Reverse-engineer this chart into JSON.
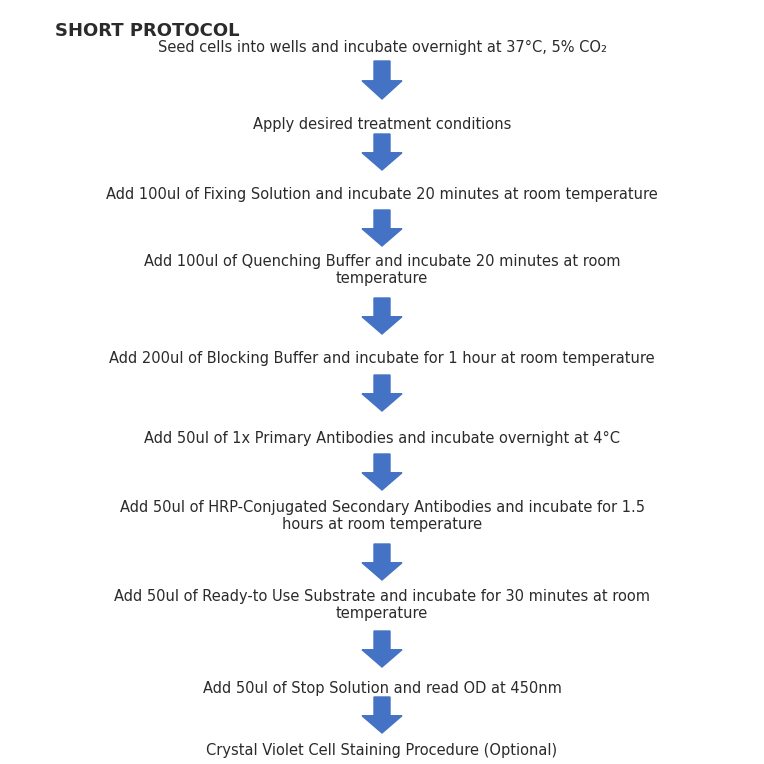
{
  "title": "SHORT PROTOCOL",
  "title_fontsize": 13,
  "title_fontweight": "bold",
  "background_color": "#ffffff",
  "arrow_color": "#4472C4",
  "text_color": "#2b2b2b",
  "text_fontsize": 10.5,
  "steps": [
    "Seed cells into wells and incubate overnight at 37°C, 5% CO₂",
    "Apply des​ired treatment conditions",
    "Add 100ul of Fixing Solution and incubate 20 minutes at room temperature",
    "Add 100ul of Quenching Buffer and incubate 20 minutes at room\ntemperature",
    "Add 200ul of Blocking Buffer and incubate for 1 hour at room temperature",
    "Add 50ul of 1x Primary Antibodies and incubate overnight at 4°C",
    "Add 50ul of HRP-Conjugated Secondary Antibodies and incubate for 1.5\nhours at room temperature",
    "Add 50ul of Ready-to Use Substrate and incubate for 30 minutes at room\ntemperature",
    "Add 50ul of Stop Solution and read OD at 450nm",
    "Crystal Violet Cell Staining Procedure (Optional)"
  ],
  "figsize": [
    7.64,
    7.64
  ],
  "dpi": 100
}
